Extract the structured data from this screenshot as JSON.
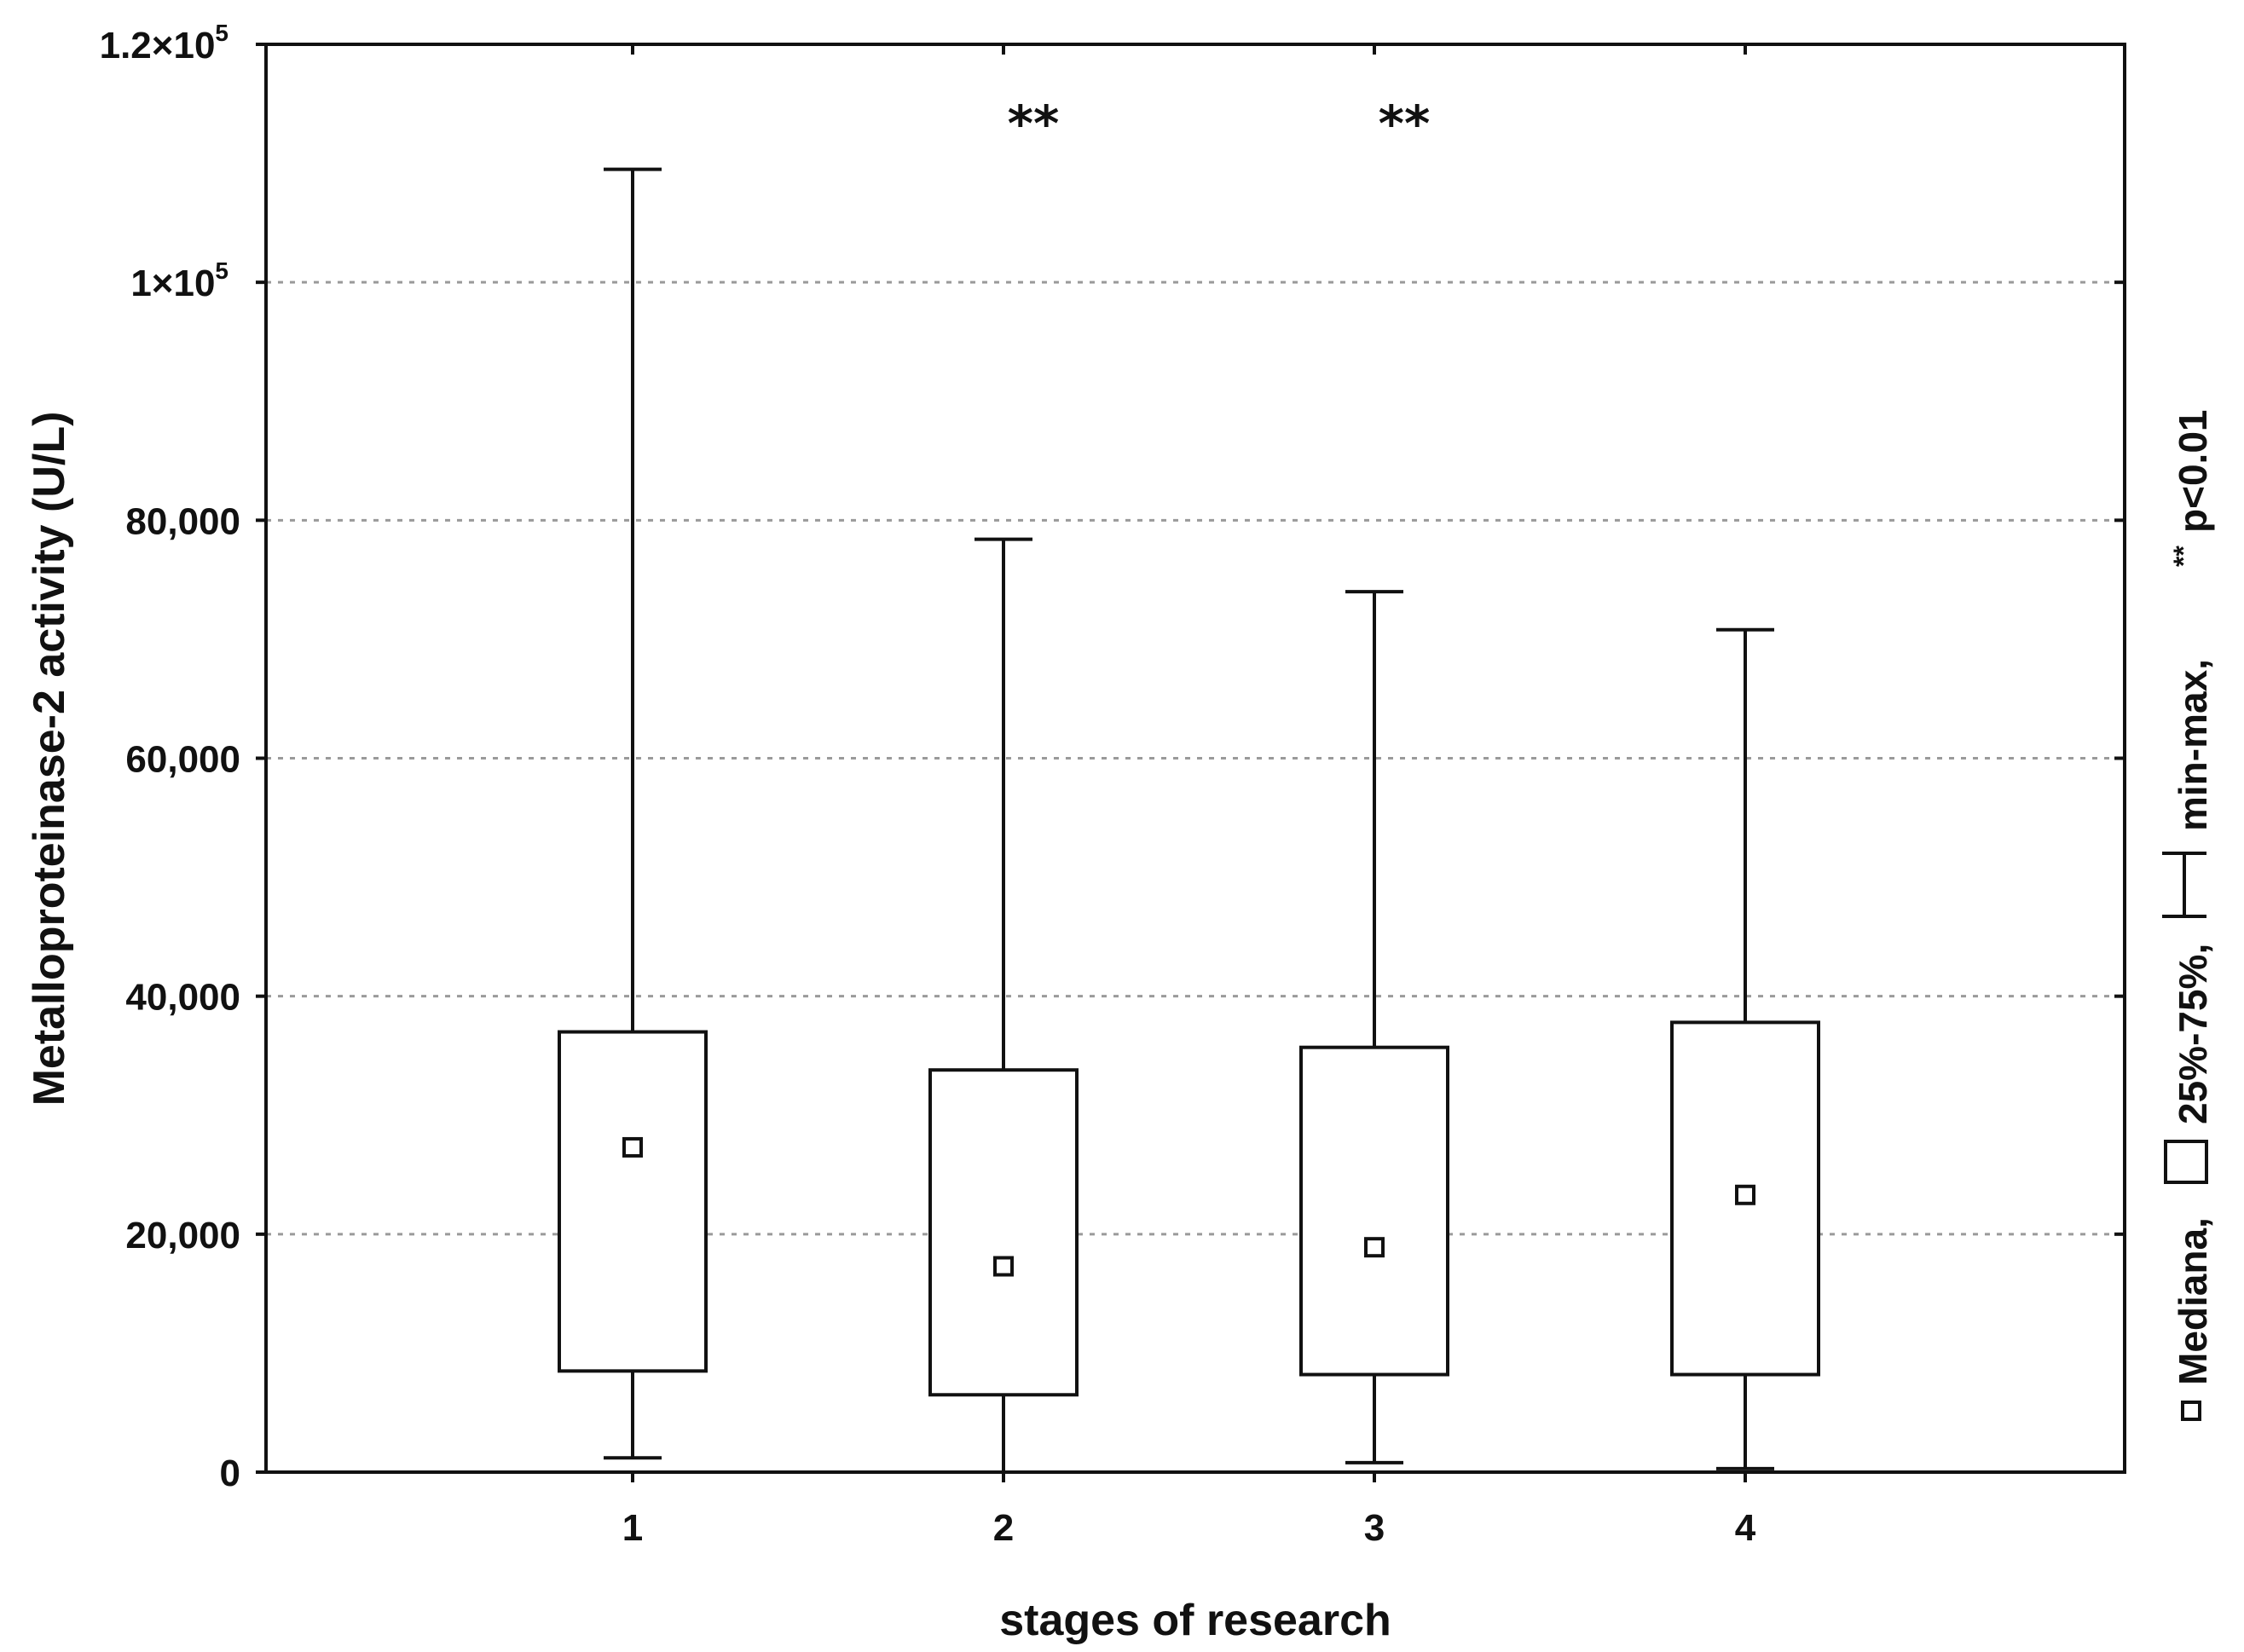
{
  "chart_data": {
    "type": "box",
    "ylabel": "Metalloproteinase-2 activity (U/L)",
    "xlabel": "stages of research",
    "ylim": [
      0,
      120000
    ],
    "grid": true,
    "y_ticks": [
      {
        "value": 0,
        "label": "0"
      },
      {
        "value": 20000,
        "label": "20,000"
      },
      {
        "value": 40000,
        "label": "40,000"
      },
      {
        "value": 60000,
        "label": "60,000"
      },
      {
        "value": 80000,
        "label": "80,000"
      },
      {
        "value": 100000,
        "label": "1×10",
        "exp": "5"
      },
      {
        "value": 120000,
        "label": "1.2×10",
        "exp": "5"
      }
    ],
    "categories": [
      "1",
      "2",
      "3",
      "4"
    ],
    "boxes": [
      {
        "stage": "1",
        "min": 1200,
        "q1": 8500,
        "median": 27300,
        "q3": 37000,
        "max": 109500,
        "significance": ""
      },
      {
        "stage": "2",
        "min": 0,
        "q1": 6500,
        "median": 17300,
        "q3": 33800,
        "max": 78400,
        "significance": "**"
      },
      {
        "stage": "3",
        "min": 800,
        "q1": 8200,
        "median": 18900,
        "q3": 35700,
        "max": 74000,
        "significance": "**"
      },
      {
        "stage": "4",
        "min": 300,
        "q1": 8200,
        "median": 23300,
        "q3": 37800,
        "max": 70800,
        "significance": ""
      }
    ],
    "legend": {
      "placement": "right, vertical",
      "median_label": "Mediana,",
      "box_label": "25%-75%,",
      "whisker_label": "min-max,",
      "sig_label": "p<0.01",
      "sig_marker": "**"
    }
  }
}
